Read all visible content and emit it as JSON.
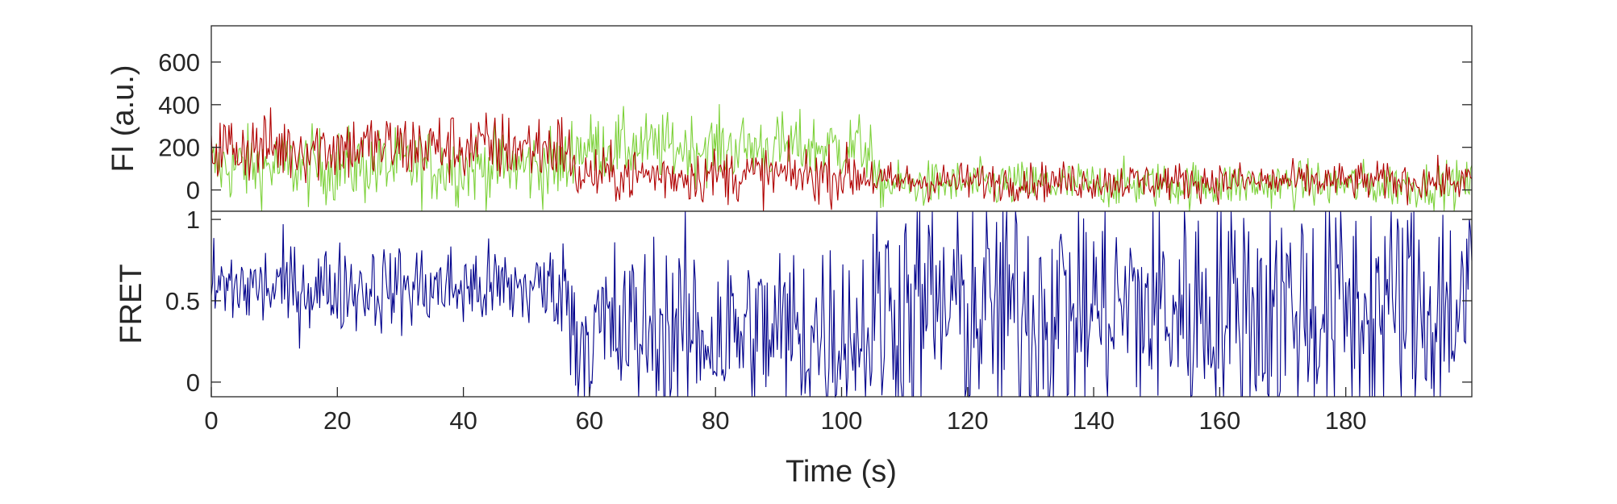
{
  "chart_data": [
    {
      "type": "line",
      "ylabel": "FI (a.u.)",
      "xlabel": "",
      "xlim": [
        0,
        200
      ],
      "ylim": [
        -100,
        770
      ],
      "yticks": [
        0,
        200,
        400,
        600
      ],
      "ytick_labels": [
        "0",
        "200",
        "400",
        "600"
      ],
      "grid": false,
      "series": [
        {
          "color": "#7dd13a",
          "segments": [
            {
              "x0": 0,
              "x1": 57,
              "mean": 110,
              "sd": 90,
              "floor": -100
            },
            {
              "x0": 57,
              "x1": 105,
              "mean": 200,
              "sd": 80,
              "floor": -100
            },
            {
              "x0": 105,
              "x1": 200,
              "mean": 25,
              "sd": 55,
              "floor": -100
            }
          ]
        },
        {
          "color": "#b00000",
          "segments": [
            {
              "x0": 0,
              "x1": 57,
              "mean": 200,
              "sd": 85,
              "floor": -100
            },
            {
              "x0": 57,
              "x1": 105,
              "mean": 70,
              "sd": 65,
              "floor": -100
            },
            {
              "x0": 105,
              "x1": 200,
              "mean": 40,
              "sd": 45,
              "floor": -100
            }
          ]
        }
      ]
    },
    {
      "type": "line",
      "ylabel": "FRET",
      "xlabel": "Time (s)",
      "xlim": [
        0,
        200
      ],
      "ylim": [
        -0.09,
        1.05
      ],
      "xticks": [
        0,
        20,
        40,
        60,
        80,
        100,
        120,
        140,
        160,
        180
      ],
      "xtick_labels": [
        "0",
        "20",
        "40",
        "60",
        "80",
        "100",
        "120",
        "140",
        "160",
        "180"
      ],
      "yticks": [
        0,
        0.5,
        1
      ],
      "ytick_labels": [
        "0",
        "0.5",
        "1"
      ],
      "grid": false,
      "series": [
        {
          "color": "#00008b",
          "segments": [
            {
              "x0": 0,
              "x1": 57,
              "mean": 0.58,
              "sd": 0.14,
              "floor": -0.09,
              "ceil": 1.05
            },
            {
              "x0": 57,
              "x1": 105,
              "mean": 0.3,
              "sd": 0.3,
              "floor": -0.09,
              "ceil": 1.05
            },
            {
              "x0": 105,
              "x1": 200,
              "mean": 0.45,
              "sd": 0.4,
              "floor": -0.09,
              "ceil": 1.05
            }
          ]
        }
      ]
    }
  ]
}
